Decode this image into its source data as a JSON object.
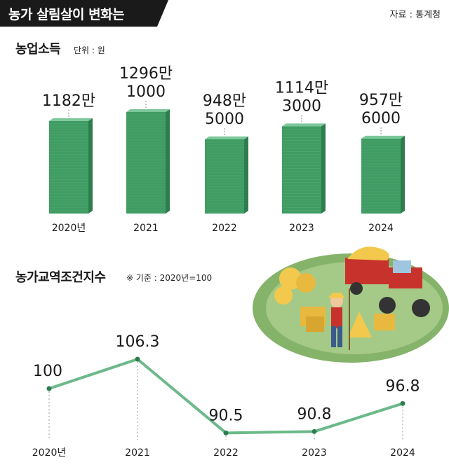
{
  "header": {
    "title": "농가 살림살이 변화는",
    "source": "자료 : 통계청"
  },
  "colors": {
    "money_front": "#3f9c63",
    "money_side": "#2f7d4e",
    "money_top": "#7cc79a",
    "line": "#6cb98a",
    "point": "#2e7d4f"
  },
  "chart_data": [
    {
      "type": "bar",
      "title": "농업소득",
      "note": "단위 : 원",
      "categories": [
        "2020년",
        "2021",
        "2022",
        "2023",
        "2024"
      ],
      "values": [
        11820000,
        12961000,
        9485000,
        11143000,
        9576000
      ],
      "value_labels": [
        [
          "1182만"
        ],
        [
          "1296만",
          "1000"
        ],
        [
          "948만",
          "5000"
        ],
        [
          "1114만",
          "3000"
        ],
        [
          "957만",
          "6000"
        ]
      ]
    },
    {
      "type": "line",
      "title": "농가교역조건지수",
      "note": "※ 기준 : 2020년=100",
      "categories": [
        "2020년",
        "2021",
        "2022",
        "2023",
        "2024"
      ],
      "values": [
        100,
        106.3,
        90.5,
        90.8,
        96.8
      ],
      "value_labels": [
        "100",
        "106.3",
        "90.5",
        "90.8",
        "96.8"
      ]
    }
  ]
}
